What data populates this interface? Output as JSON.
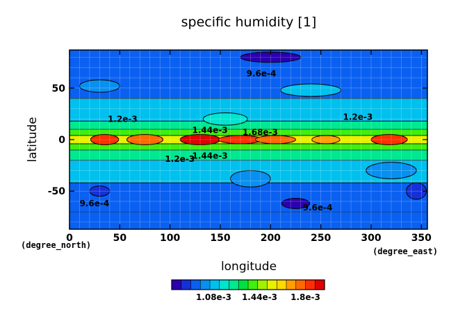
{
  "chart_data": {
    "type": "heatmap",
    "title": "specific humidity [1]",
    "xlabel": "longitude",
    "ylabel": "latitude",
    "x_unit": "(degree_east)",
    "y_unit": "(degree_north)",
    "xlim": [
      0,
      356
    ],
    "ylim": [
      -87,
      87
    ],
    "x_ticks": [
      0,
      50,
      100,
      150,
      200,
      250,
      300,
      350
    ],
    "y_ticks": [
      -50,
      0,
      50
    ],
    "grid": true,
    "colorbar": {
      "placement": "bottom",
      "min": 0.00075,
      "max": 0.00195,
      "tick_values": [
        0.00108,
        0.00144,
        0.0018
      ],
      "tick_labels": [
        "1.08e-3",
        "1.44e-3",
        "1.8e-3"
      ],
      "colors": [
        "#2a00b0",
        "#1530d8",
        "#0a60f0",
        "#0890f0",
        "#00c0ee",
        "#00e4d0",
        "#00e890",
        "#00e040",
        "#40ee10",
        "#a0f000",
        "#e8f000",
        "#ffd800",
        "#ffa000",
        "#ff6a00",
        "#ff3000",
        "#e00000"
      ]
    },
    "contour_labels": [
      {
        "text": "9.6e-4",
        "x": 176,
        "y": 64
      },
      {
        "text": "1.2e-3",
        "x": 38,
        "y": 20
      },
      {
        "text": "1.44e-3",
        "x": 122,
        "y": 9
      },
      {
        "text": "1.68e-3",
        "x": 172,
        "y": 7
      },
      {
        "text": "1.2e-3",
        "x": 272,
        "y": 22
      },
      {
        "text": "1.2e-3",
        "x": 95,
        "y": -19
      },
      {
        "text": "1.44e-3",
        "x": 122,
        "y": -16
      },
      {
        "text": "9.6e-4",
        "x": 10,
        "y": -62
      },
      {
        "text": "9.6e-4",
        "x": 232,
        "y": -66
      }
    ],
    "bands": [
      {
        "lat": [
          -87,
          -70
        ],
        "value": 0.00093
      },
      {
        "lat": [
          -70,
          -42
        ],
        "value": 0.00096
      },
      {
        "lat": [
          -42,
          -20
        ],
        "value": 0.00108
      },
      {
        "lat": [
          -20,
          -10
        ],
        "value": 0.00122
      },
      {
        "lat": [
          -10,
          -4
        ],
        "value": 0.00138
      },
      {
        "lat": [
          -4,
          4
        ],
        "value": 0.00155
      },
      {
        "lat": [
          4,
          10
        ],
        "value": 0.00138
      },
      {
        "lat": [
          10,
          18
        ],
        "value": 0.00125
      },
      {
        "lat": [
          18,
          40
        ],
        "value": 0.00108
      },
      {
        "lat": [
          40,
          87
        ],
        "value": 0.00093
      }
    ],
    "blobs": [
      {
        "lon": 35,
        "lat": 0,
        "rlon": 14,
        "rlat": 5,
        "value": 0.00185
      },
      {
        "lon": 75,
        "lat": 0,
        "rlon": 18,
        "rlat": 5,
        "value": 0.00175
      },
      {
        "lon": 130,
        "lat": 0,
        "rlon": 20,
        "rlat": 5,
        "value": 0.00188
      },
      {
        "lon": 170,
        "lat": 0,
        "rlon": 22,
        "rlat": 4,
        "value": 0.0018
      },
      {
        "lon": 205,
        "lat": 0,
        "rlon": 20,
        "rlat": 4,
        "value": 0.00178
      },
      {
        "lon": 255,
        "lat": 0,
        "rlon": 14,
        "rlat": 4,
        "value": 0.0017
      },
      {
        "lon": 318,
        "lat": 0,
        "rlon": 18,
        "rlat": 5,
        "value": 0.00182
      },
      {
        "lon": 200,
        "lat": 80,
        "rlon": 30,
        "rlat": 5,
        "value": 0.00075
      },
      {
        "lon": 225,
        "lat": -62,
        "rlon": 14,
        "rlat": 5,
        "value": 0.00082
      },
      {
        "lon": 30,
        "lat": -50,
        "rlon": 10,
        "rlat": 5,
        "value": 0.00085
      },
      {
        "lon": 345,
        "lat": -50,
        "rlon": 10,
        "rlat": 8,
        "value": 0.00088
      },
      {
        "lon": 180,
        "lat": -38,
        "rlon": 20,
        "rlat": 8,
        "value": 0.00098
      },
      {
        "lon": 320,
        "lat": -30,
        "rlon": 25,
        "rlat": 8,
        "value": 0.00102
      },
      {
        "lon": 240,
        "lat": 48,
        "rlon": 30,
        "rlat": 6,
        "value": 0.00106
      },
      {
        "lon": 30,
        "lat": 52,
        "rlon": 20,
        "rlat": 6,
        "value": 0.00104
      },
      {
        "lon": 155,
        "lat": 20,
        "rlon": 22,
        "rlat": 6,
        "value": 0.00118
      }
    ]
  }
}
